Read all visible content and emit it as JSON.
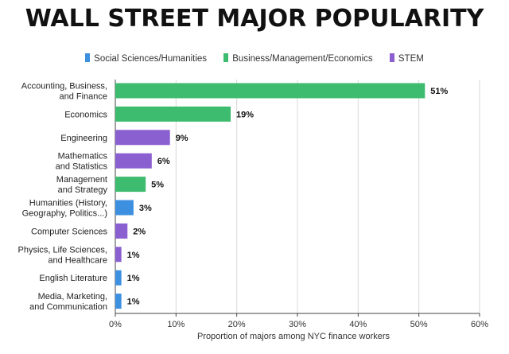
{
  "chart_data": {
    "type": "bar",
    "orientation": "horizontal",
    "title": "WALL STREET MAJOR POPULARITY",
    "xlabel": "Proportion of majors among NYC finance workers",
    "ylabel": "",
    "xlim": [
      0,
      60
    ],
    "xticks": [
      0,
      10,
      20,
      30,
      40,
      50,
      60
    ],
    "xtick_labels": [
      "0%",
      "10%",
      "20%",
      "30%",
      "40%",
      "50%",
      "60%"
    ],
    "grid": true,
    "legend_position": "top",
    "legend": [
      {
        "name": "Social Sciences/Humanities",
        "color": "#3d8fe0"
      },
      {
        "name": "Business/Management/Economics",
        "color": "#3dbb6e"
      },
      {
        "name": "STEM",
        "color": "#8a5fcf"
      }
    ],
    "bars": [
      {
        "label": [
          "Accounting, Business,",
          "and Finance"
        ],
        "value": 51,
        "value_label": "51%",
        "group": 1
      },
      {
        "label": [
          "Economics"
        ],
        "value": 19,
        "value_label": "19%",
        "group": 1
      },
      {
        "label": [
          "Engineering"
        ],
        "value": 9,
        "value_label": "9%",
        "group": 2
      },
      {
        "label": [
          "Mathematics",
          "and Statistics"
        ],
        "value": 6,
        "value_label": "6%",
        "group": 2
      },
      {
        "label": [
          "Management",
          "and Strategy"
        ],
        "value": 5,
        "value_label": "5%",
        "group": 1
      },
      {
        "label": [
          "Humanities (History,",
          "Geography, Politics...)"
        ],
        "value": 3,
        "value_label": "3%",
        "group": 0
      },
      {
        "label": [
          "Computer Sciences"
        ],
        "value": 2,
        "value_label": "2%",
        "group": 2
      },
      {
        "label": [
          "Physics, Life Sciences,",
          "and Healthcare"
        ],
        "value": 1,
        "value_label": "1%",
        "group": 2
      },
      {
        "label": [
          "English Literature"
        ],
        "value": 1,
        "value_label": "1%",
        "group": 0
      },
      {
        "label": [
          "Media, Marketing,",
          "and Communication"
        ],
        "value": 1,
        "value_label": "1%",
        "group": 0
      }
    ]
  }
}
